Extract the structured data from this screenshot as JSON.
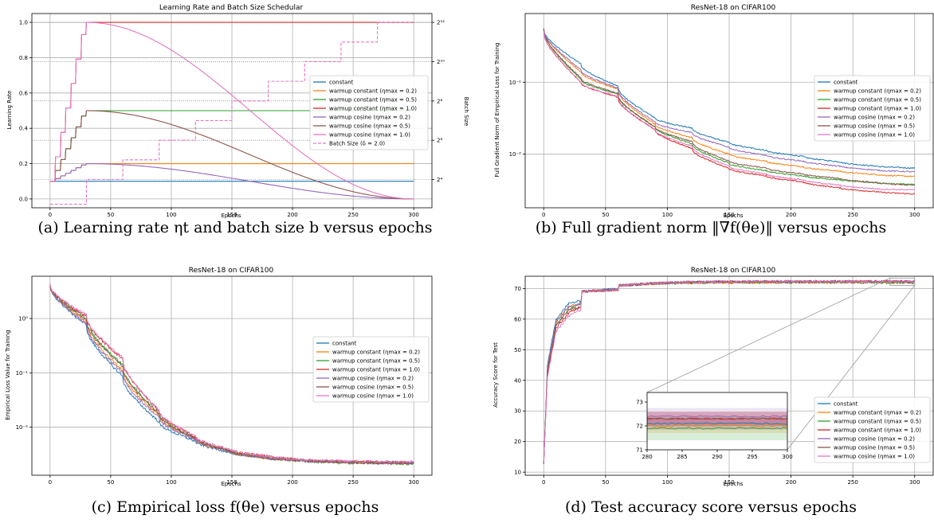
{
  "colors": {
    "constant": "#1f77b4",
    "warmup_constant_02": "#ff7f0e",
    "warmup_constant_05": "#2ca02c",
    "warmup_constant_10": "#d62728",
    "warmup_cosine_02": "#9467bd",
    "warmup_cosine_05": "#8c564b",
    "warmup_cosine_10": "#e377c2"
  },
  "captions": {
    "a": "(a) Learning rate ηt and batch size b versus epochs",
    "b": "(b) Full gradient norm ‖∇f(θe)‖ versus epochs",
    "c": "(c) Empirical loss f(θe) versus epochs",
    "d": "(d) Test accuracy score versus epochs"
  },
  "chart_data": [
    {
      "id": "a",
      "type": "line",
      "title": "Learning Rate and Batch Size Schedular",
      "xlabel": "Epochs",
      "ylabel": "Learning Rate",
      "y2label": "Batch Size",
      "xlim": [
        -15,
        315
      ],
      "ylim": [
        -0.05,
        1.05
      ],
      "y2_scale": "log2",
      "y2_ticks": [
        "2⁴",
        "2⁶",
        "2⁸",
        "2¹⁰",
        "2¹²"
      ],
      "xticks": [
        0,
        50,
        100,
        150,
        200,
        250,
        300
      ],
      "yticks": [
        "0.0",
        "0.2",
        "0.4",
        "0.6",
        "0.8",
        "1.0"
      ],
      "grid": true,
      "legend_position": "right",
      "series": [
        {
          "name": "constant",
          "kind": "const",
          "value": 0.1
        },
        {
          "name": "warmup constant (ηmax = 0.2)",
          "kind": "warmup_const",
          "max": 0.2
        },
        {
          "name": "warmup constant (ηmax = 0.5)",
          "kind": "warmup_const",
          "max": 0.5
        },
        {
          "name": "warmup constant (ηmax = 1.0)",
          "kind": "warmup_const",
          "max": 1.0
        },
        {
          "name": "warmup cosine (ηmax = 0.2)",
          "kind": "warmup_cos",
          "max": 0.2
        },
        {
          "name": "warmup cosine (ηmax = 0.5)",
          "kind": "warmup_cos",
          "max": 0.5
        },
        {
          "name": "warmup cosine (ηmax = 1.0)",
          "kind": "warmup_cos",
          "max": 1.0
        },
        {
          "name": "Batch Size (δ = 2.0)",
          "kind": "batch",
          "x": [
            0,
            30,
            30,
            60,
            60,
            90,
            90,
            120,
            120,
            150,
            150,
            180,
            180,
            210,
            210,
            240,
            240,
            270,
            270,
            300
          ],
          "log2_batch": [
            3,
            3,
            4,
            4,
            5,
            5,
            6,
            6,
            7,
            7,
            8,
            8,
            9,
            9,
            10,
            10,
            11,
            11,
            12,
            12
          ]
        }
      ]
    },
    {
      "id": "b",
      "type": "line",
      "title": "ResNet-18 on CIFAR100",
      "xlabel": "Epochs",
      "ylabel": "Full Gradient Norm of Empirical Loss for Training",
      "yscale": "log",
      "xlim": [
        -15,
        315
      ],
      "ylim": [
        0.0018,
        0.9
      ],
      "xticks": [
        0,
        50,
        100,
        150,
        200,
        250,
        300
      ],
      "yticks": [
        {
          "v": 0.01,
          "label": "10⁻²"
        },
        {
          "v": 0.1,
          "label": "10⁻¹"
        }
      ],
      "grid": true,
      "legend_position": "upper right",
      "x_breaks": [
        0,
        30,
        60,
        90,
        120,
        150,
        180,
        210,
        240,
        270,
        300
      ],
      "series": [
        {
          "name": "constant",
          "values": [
            0.55,
            0.18,
            0.088,
            0.032,
            0.023,
            0.0145,
            0.0113,
            0.0093,
            0.0078,
            0.0068,
            0.0064
          ]
        },
        {
          "name": "warmup constant (ηmax = 0.2)",
          "values": [
            0.55,
            0.14,
            0.08,
            0.026,
            0.017,
            0.01,
            0.008,
            0.0067,
            0.0058,
            0.0052,
            0.0049
          ]
        },
        {
          "name": "warmup constant (ηmax = 0.5)",
          "values": [
            0.55,
            0.11,
            0.068,
            0.024,
            0.014,
            0.0075,
            0.0059,
            0.005,
            0.0044,
            0.004,
            0.0038
          ]
        },
        {
          "name": "warmup constant (ηmax = 1.0)",
          "values": [
            0.52,
            0.1,
            0.062,
            0.022,
            0.012,
            0.0063,
            0.005,
            0.0041,
            0.0034,
            0.003,
            0.0028
          ]
        },
        {
          "name": "warmup cosine (ηmax = 0.2)",
          "values": [
            0.55,
            0.15,
            0.083,
            0.028,
            0.02,
            0.0125,
            0.0096,
            0.008,
            0.0068,
            0.006,
            0.0057
          ]
        },
        {
          "name": "warmup cosine (ηmax = 0.5)",
          "values": [
            0.55,
            0.115,
            0.07,
            0.024,
            0.015,
            0.008,
            0.0064,
            0.0053,
            0.0046,
            0.004,
            0.0037
          ]
        },
        {
          "name": "warmup cosine (ηmax = 1.0)",
          "values": [
            0.52,
            0.1,
            0.064,
            0.022,
            0.013,
            0.0068,
            0.0053,
            0.0044,
            0.0037,
            0.0033,
            0.0032
          ]
        }
      ]
    },
    {
      "id": "c",
      "type": "line",
      "title": "ResNet-18 on CIFAR100",
      "xlabel": "Epochs",
      "ylabel": "Empirical Loss Value for Training",
      "yscale": "log",
      "xlim": [
        -15,
        315
      ],
      "ylim": [
        0.0013,
        6
      ],
      "xticks": [
        0,
        50,
        100,
        150,
        200,
        250,
        300
      ],
      "yticks": [
        {
          "v": 0.01,
          "label": "10⁻²"
        },
        {
          "v": 0.1,
          "label": "10⁻¹"
        },
        {
          "v": 1,
          "label": "10⁰"
        }
      ],
      "grid": true,
      "legend_position": "right",
      "x_breaks": [
        0,
        30,
        60,
        90,
        120,
        150,
        180,
        210,
        240,
        270,
        300
      ],
      "series": [
        {
          "name": "constant",
          "values": [
            4.2,
            0.75,
            0.085,
            0.0125,
            0.0055,
            0.0034,
            0.0028,
            0.0024,
            0.0023,
            0.0022,
            0.0022
          ]
        },
        {
          "name": "warmup constant (ηmax = 0.2)",
          "values": [
            4.2,
            0.85,
            0.11,
            0.0165,
            0.006,
            0.0035,
            0.0027,
            0.0024,
            0.0023,
            0.0022,
            0.0022
          ]
        },
        {
          "name": "warmup constant (ηmax = 0.5)",
          "values": [
            4.2,
            1.0,
            0.14,
            0.018,
            0.0063,
            0.0035,
            0.0027,
            0.0024,
            0.0022,
            0.0022,
            0.0021
          ]
        },
        {
          "name": "warmup constant (ηmax = 1.0)",
          "values": [
            4.2,
            1.1,
            0.18,
            0.02,
            0.0066,
            0.0037,
            0.0029,
            0.0025,
            0.0023,
            0.0023,
            0.0022
          ]
        },
        {
          "name": "warmup cosine (ηmax = 0.2)",
          "values": [
            4.2,
            0.8,
            0.1,
            0.015,
            0.0058,
            0.0034,
            0.0027,
            0.0024,
            0.0023,
            0.0022,
            0.0022
          ]
        },
        {
          "name": "warmup cosine (ηmax = 0.5)",
          "values": [
            4.2,
            0.95,
            0.13,
            0.0175,
            0.0062,
            0.0035,
            0.0027,
            0.0024,
            0.0023,
            0.0022,
            0.0022
          ]
        },
        {
          "name": "warmup cosine (ηmax = 1.0)",
          "values": [
            4.2,
            1.15,
            0.19,
            0.02,
            0.0067,
            0.0038,
            0.0029,
            0.0025,
            0.0024,
            0.0023,
            0.0023
          ]
        }
      ]
    },
    {
      "id": "d",
      "type": "line",
      "title": "ResNet-18 on CIFAR100",
      "xlabel": "Epochs",
      "ylabel": "Accuracy Score for Test",
      "xlim": [
        -15,
        315
      ],
      "ylim": [
        9,
        74
      ],
      "xticks": [
        0,
        50,
        100,
        150,
        200,
        250,
        300
      ],
      "yticks": [
        10,
        20,
        30,
        40,
        50,
        60,
        70
      ],
      "grid": true,
      "legend_position": "lower right",
      "x_breaks": [
        0,
        3,
        10,
        20,
        30,
        31,
        60,
        61,
        90,
        120,
        150,
        300
      ],
      "series": [
        {
          "name": "constant",
          "values": [
            13,
            45,
            60,
            65,
            66,
            69,
            70,
            71,
            71.6,
            72.0,
            72.1,
            72.1
          ]
        },
        {
          "name": "warmup constant (ηmax = 0.2)",
          "values": [
            13,
            44,
            59,
            64,
            65,
            69,
            69.5,
            71,
            71.5,
            71.8,
            71.9,
            72.0
          ]
        },
        {
          "name": "warmup constant (ηmax = 0.5)",
          "values": [
            13,
            43,
            58,
            63,
            65,
            69,
            69.5,
            71,
            71.6,
            71.9,
            72.0,
            71.9
          ]
        },
        {
          "name": "warmup constant (ηmax = 1.0)",
          "values": [
            13,
            42,
            57,
            62,
            64,
            69,
            69.5,
            71,
            71.7,
            72.1,
            72.2,
            72.3
          ]
        },
        {
          "name": "warmup cosine (ηmax = 0.2)",
          "values": [
            13,
            44,
            59,
            64,
            65,
            69,
            69.8,
            71,
            71.8,
            72.2,
            72.3,
            72.4
          ]
        },
        {
          "name": "warmup cosine (ηmax = 0.5)",
          "values": [
            13,
            43,
            58,
            63,
            64,
            69,
            69.6,
            71,
            71.7,
            72.1,
            72.2,
            72.3
          ]
        },
        {
          "name": "warmup cosine (ηmax = 1.0)",
          "values": [
            13,
            41,
            56,
            61,
            63,
            69,
            69.5,
            71,
            71.7,
            72.1,
            72.2,
            72.2
          ]
        }
      ],
      "inset": {
        "xlim": [
          280,
          300
        ],
        "ylim": [
          71,
          73.4
        ],
        "xticks": [
          280,
          285,
          290,
          295,
          300
        ],
        "yticks": [
          71,
          72,
          73
        ]
      }
    }
  ]
}
